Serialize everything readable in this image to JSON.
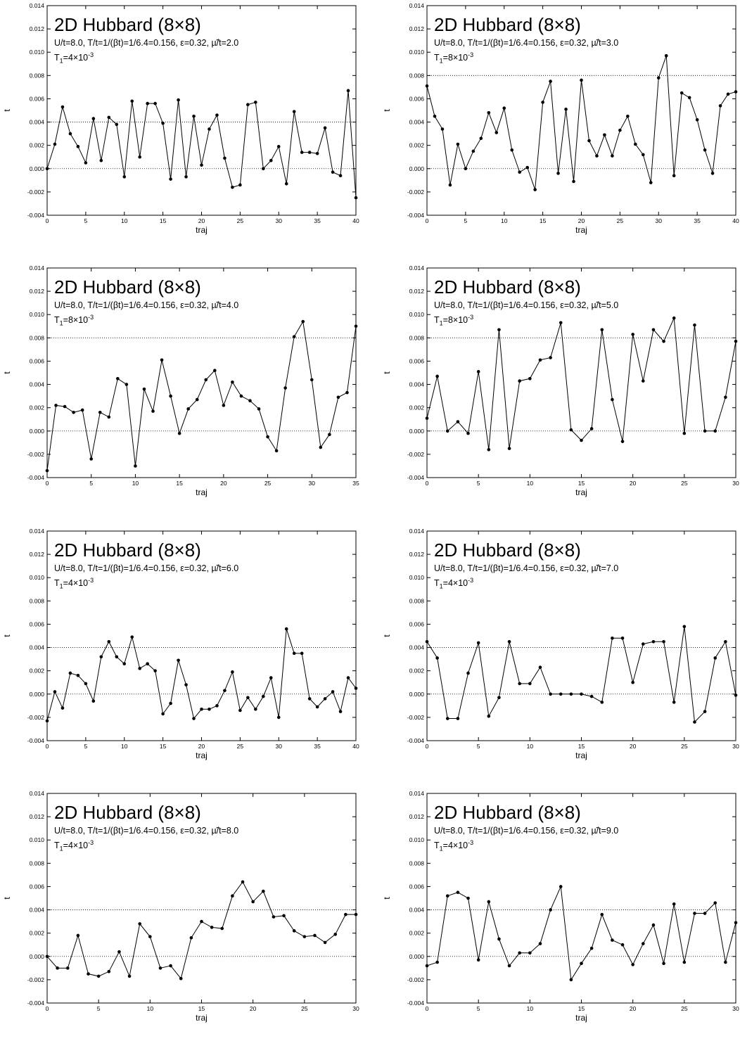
{
  "common": {
    "title": "2D Hubbard (8×8)",
    "xlabel": "traj",
    "ylabel": "t"
  },
  "chart_data": [
    {
      "type": "line",
      "title": "2D Hubbard (8×8)",
      "params": "U/t=8.0, T/t=1/(βt)=1/6.4=0.156, ε=0.32, µ̃/t=2.0",
      "t1_label": {
        "base": "T",
        "sub": "1",
        "mid": "=4×10",
        "sup": "-3"
      },
      "xlabel": "traj",
      "ylabel": "t",
      "xlim": [
        0,
        40
      ],
      "xticks": [
        0,
        5,
        10,
        15,
        20,
        25,
        30,
        35,
        40
      ],
      "ylim": [
        -0.004,
        0.014
      ],
      "yticks": [
        -0.004,
        -0.002,
        0.0,
        0.002,
        0.004,
        0.006,
        0.008,
        0.01,
        0.012,
        0.014
      ],
      "ytick_labels": [
        "-0.004",
        "-0.002",
        "0.000",
        "0.002",
        "0.004",
        "0.006",
        "0.008",
        "0.010",
        "0.012",
        "0.014"
      ],
      "threshold": 0.004,
      "y": [
        0.0,
        0.0021,
        0.0053,
        0.003,
        0.0019,
        0.0005,
        0.0043,
        0.0007,
        0.0044,
        0.0038,
        -0.0007,
        0.0058,
        0.001,
        0.0056,
        0.0056,
        0.0039,
        -0.0009,
        0.0059,
        -0.0007,
        0.0045,
        0.0003,
        0.0034,
        0.0046,
        0.0009,
        -0.0016,
        -0.0014,
        0.0055,
        0.0057,
        0.0,
        0.0007,
        0.0019,
        -0.0013,
        0.0049,
        0.0014,
        0.0014,
        0.0013,
        0.0035,
        -0.0003,
        -0.0006,
        0.0067,
        -0.0025
      ]
    },
    {
      "type": "line",
      "title": "2D Hubbard (8×8)",
      "params": "U/t=8.0, T/t=1/(βt)=1/6.4=0.156, ε=0.32, µ̃/t=3.0",
      "t1_label": {
        "base": "T",
        "sub": "1",
        "mid": "=8×10",
        "sup": "-3"
      },
      "xlabel": "traj",
      "ylabel": "t",
      "xlim": [
        0,
        40
      ],
      "xticks": [
        0,
        5,
        10,
        15,
        20,
        25,
        30,
        35,
        40
      ],
      "ylim": [
        -0.004,
        0.014
      ],
      "yticks": [
        -0.004,
        -0.002,
        0.0,
        0.002,
        0.004,
        0.006,
        0.008,
        0.01,
        0.012,
        0.014
      ],
      "ytick_labels": [
        "-0.004",
        "-0.002",
        "0.000",
        "0.002",
        "0.004",
        "0.006",
        "0.008",
        "0.010",
        "0.012",
        "0.014"
      ],
      "threshold": 0.008,
      "y": [
        0.0071,
        0.0045,
        0.0034,
        -0.0014,
        0.0021,
        0.0,
        0.0015,
        0.0026,
        0.0048,
        0.0031,
        0.0052,
        0.0016,
        -0.0003,
        0.0001,
        -0.0018,
        0.0057,
        0.0075,
        -0.0004,
        0.0051,
        -0.0011,
        0.0076,
        0.0024,
        0.0011,
        0.0029,
        0.0011,
        0.0033,
        0.0045,
        0.0021,
        0.0012,
        -0.0012,
        0.0078,
        0.0097,
        -0.0006,
        0.0065,
        0.0061,
        0.0042,
        0.0016,
        -0.0004,
        0.0054,
        0.0064,
        0.0066
      ]
    },
    {
      "type": "line",
      "title": "2D Hubbard (8×8)",
      "params": "U/t=8.0, T/t=1/(βt)=1/6.4=0.156, ε=0.32, µ̃/t=4.0",
      "t1_label": {
        "base": "T",
        "sub": "1",
        "mid": "=8×10",
        "sup": "-3"
      },
      "xlabel": "traj",
      "ylabel": "t",
      "xlim": [
        0,
        35
      ],
      "xticks": [
        0,
        5,
        10,
        15,
        20,
        25,
        30,
        35
      ],
      "ylim": [
        -0.004,
        0.014
      ],
      "yticks": [
        -0.004,
        -0.002,
        0.0,
        0.002,
        0.004,
        0.006,
        0.008,
        0.01,
        0.012,
        0.014
      ],
      "ytick_labels": [
        "-0.004",
        "-0.002",
        "0.000",
        "0.002",
        "0.004",
        "0.006",
        "0.008",
        "0.010",
        "0.012",
        "0.014"
      ],
      "threshold": 0.008,
      "y": [
        -0.0034,
        0.0022,
        0.0021,
        0.0016,
        0.0018,
        -0.0024,
        0.0016,
        0.0012,
        0.0045,
        0.004,
        -0.003,
        0.0036,
        0.0017,
        0.0061,
        0.003,
        -0.0002,
        0.0019,
        0.0027,
        0.0044,
        0.0052,
        0.0022,
        0.0042,
        0.003,
        0.0026,
        0.0019,
        -0.0005,
        -0.0017,
        0.0037,
        0.0081,
        0.0094,
        0.0044,
        -0.0014,
        -0.0003,
        0.0029,
        0.0033,
        0.009
      ]
    },
    {
      "type": "line",
      "title": "2D Hubbard (8×8)",
      "params": "U/t=8.0, T/t=1/(βt)=1/6.4=0.156, ε=0.32, µ̃/t=5.0",
      "t1_label": {
        "base": "T",
        "sub": "1",
        "mid": "=8×10",
        "sup": "-3"
      },
      "xlabel": "traj",
      "ylabel": "t",
      "xlim": [
        0,
        30
      ],
      "xticks": [
        0,
        5,
        10,
        15,
        20,
        25,
        30
      ],
      "ylim": [
        -0.004,
        0.014
      ],
      "yticks": [
        -0.004,
        -0.002,
        0.0,
        0.002,
        0.004,
        0.006,
        0.008,
        0.01,
        0.012,
        0.014
      ],
      "ytick_labels": [
        "-0.004",
        "-0.002",
        "0.000",
        "0.002",
        "0.004",
        "0.006",
        "0.008",
        "0.010",
        "0.012",
        "0.014"
      ],
      "threshold": 0.008,
      "y": [
        0.0011,
        0.0047,
        0.0,
        0.0008,
        -0.0002,
        0.0051,
        -0.0016,
        0.0087,
        -0.0015,
        0.0043,
        0.0045,
        0.0061,
        0.0063,
        0.0093,
        0.0001,
        -0.0008,
        0.0002,
        0.0087,
        0.0027,
        -0.0009,
        0.0083,
        0.0043,
        0.0087,
        0.0077,
        0.0097,
        -0.0002,
        0.0091,
        0.0,
        0.0,
        0.0029,
        0.0077
      ]
    },
    {
      "type": "line",
      "title": "2D Hubbard (8×8)",
      "params": "U/t=8.0, T/t=1/(βt)=1/6.4=0.156, ε=0.32, µ̃/t=6.0",
      "t1_label": {
        "base": "T",
        "sub": "1",
        "mid": "=4×10",
        "sup": "-3"
      },
      "xlabel": "traj",
      "ylabel": "t",
      "xlim": [
        0,
        40
      ],
      "xticks": [
        0,
        5,
        10,
        15,
        20,
        25,
        30,
        35,
        40
      ],
      "ylim": [
        -0.004,
        0.014
      ],
      "yticks": [
        -0.004,
        -0.002,
        0.0,
        0.002,
        0.004,
        0.006,
        0.008,
        0.01,
        0.012,
        0.014
      ],
      "ytick_labels": [
        "-0.004",
        "-0.002",
        "0.000",
        "0.002",
        "0.004",
        "0.006",
        "0.008",
        "0.010",
        "0.012",
        "0.014"
      ],
      "threshold": 0.004,
      "y": [
        -0.0023,
        0.0002,
        -0.0012,
        0.0018,
        0.0016,
        0.0009,
        -0.0006,
        0.0032,
        0.0045,
        0.0032,
        0.0026,
        0.0049,
        0.0022,
        0.0026,
        0.002,
        -0.0017,
        -0.0008,
        0.0029,
        0.0008,
        -0.0021,
        -0.0013,
        -0.0013,
        -0.001,
        0.0003,
        0.0019,
        -0.0014,
        -0.0003,
        -0.0013,
        -0.0002,
        0.0014,
        -0.002,
        0.0056,
        0.0035,
        0.0035,
        -0.0004,
        -0.0011,
        -0.0004,
        0.0002,
        -0.0015,
        0.0014,
        0.0005
      ]
    },
    {
      "type": "line",
      "title": "2D Hubbard (8×8)",
      "params": "U/t=8.0, T/t=1/(βt)=1/6.4=0.156, ε=0.32, µ̃/t=7.0",
      "t1_label": {
        "base": "T",
        "sub": "1",
        "mid": "=4×10",
        "sup": "-3"
      },
      "xlabel": "traj",
      "ylabel": "t",
      "xlim": [
        0,
        30
      ],
      "xticks": [
        0,
        5,
        10,
        15,
        20,
        25,
        30
      ],
      "ylim": [
        -0.004,
        0.014
      ],
      "yticks": [
        -0.004,
        -0.002,
        0.0,
        0.002,
        0.004,
        0.006,
        0.008,
        0.01,
        0.012,
        0.014
      ],
      "ytick_labels": [
        "-0.004",
        "-0.002",
        "0.000",
        "0.002",
        "0.004",
        "0.006",
        "0.008",
        "0.010",
        "0.012",
        "0.014"
      ],
      "threshold": 0.004,
      "y": [
        0.0045,
        0.0031,
        -0.0021,
        -0.0021,
        0.0018,
        0.0044,
        -0.0019,
        -0.0003,
        0.0045,
        0.0009,
        0.0009,
        0.0023,
        0.0,
        0.0,
        0.0,
        0.0,
        -0.0002,
        -0.0007,
        0.0048,
        0.0048,
        0.001,
        0.0043,
        0.0045,
        0.0045,
        -0.0007,
        0.0058,
        -0.0024,
        -0.0015,
        0.0031,
        0.0045,
        -0.0001
      ]
    },
    {
      "type": "line",
      "title": "2D Hubbard (8×8)",
      "params": "U/t=8.0, T/t=1/(βt)=1/6.4=0.156, ε=0.32, µ̃/t=8.0",
      "t1_label": {
        "base": "T",
        "sub": "1",
        "mid": "=4×10",
        "sup": "-3"
      },
      "xlabel": "traj",
      "ylabel": "t",
      "xlim": [
        0,
        30
      ],
      "xticks": [
        0,
        5,
        10,
        15,
        20,
        25,
        30
      ],
      "ylim": [
        -0.004,
        0.014
      ],
      "yticks": [
        -0.004,
        -0.002,
        0.0,
        0.002,
        0.004,
        0.006,
        0.008,
        0.01,
        0.012,
        0.014
      ],
      "ytick_labels": [
        "-0.004",
        "-0.002",
        "0.000",
        "0.002",
        "0.004",
        "0.006",
        "0.008",
        "0.010",
        "0.012",
        "0.014"
      ],
      "threshold": 0.004,
      "y": [
        0.0,
        -0.001,
        -0.001,
        0.0018,
        -0.0015,
        -0.0017,
        -0.0013,
        0.0004,
        -0.0017,
        0.0028,
        0.0017,
        -0.001,
        -0.0008,
        -0.0019,
        0.0016,
        0.003,
        0.0025,
        0.0024,
        0.0052,
        0.0064,
        0.0047,
        0.0056,
        0.0034,
        0.0035,
        0.0022,
        0.0017,
        0.0018,
        0.0012,
        0.0019,
        0.0036,
        0.0036
      ]
    },
    {
      "type": "line",
      "title": "2D Hubbard (8×8)",
      "params": "U/t=8.0, T/t=1/(βt)=1/6.4=0.156, ε=0.32, µ̃/t=9.0",
      "t1_label": {
        "base": "T",
        "sub": "1",
        "mid": "=4×10",
        "sup": "-3"
      },
      "xlabel": "traj",
      "ylabel": "t",
      "xlim": [
        0,
        30
      ],
      "xticks": [
        0,
        5,
        10,
        15,
        20,
        25,
        30
      ],
      "ylim": [
        -0.004,
        0.014
      ],
      "yticks": [
        -0.004,
        -0.002,
        0.0,
        0.002,
        0.004,
        0.006,
        0.008,
        0.01,
        0.012,
        0.014
      ],
      "ytick_labels": [
        "-0.004",
        "-0.002",
        "0.000",
        "0.002",
        "0.004",
        "0.006",
        "0.008",
        "0.010",
        "0.012",
        "0.014"
      ],
      "threshold": 0.004,
      "y": [
        -0.0008,
        -0.0005,
        0.0052,
        0.0055,
        0.005,
        -0.0003,
        0.0047,
        0.0015,
        -0.0008,
        0.0003,
        0.0003,
        0.0011,
        0.004,
        0.006,
        -0.002,
        -0.0006,
        0.0007,
        0.0036,
        0.0014,
        0.001,
        -0.0007,
        0.0011,
        0.0027,
        -0.0006,
        0.0045,
        -0.0005,
        0.0037,
        0.0037,
        0.0046,
        -0.0005,
        0.0029
      ]
    }
  ]
}
